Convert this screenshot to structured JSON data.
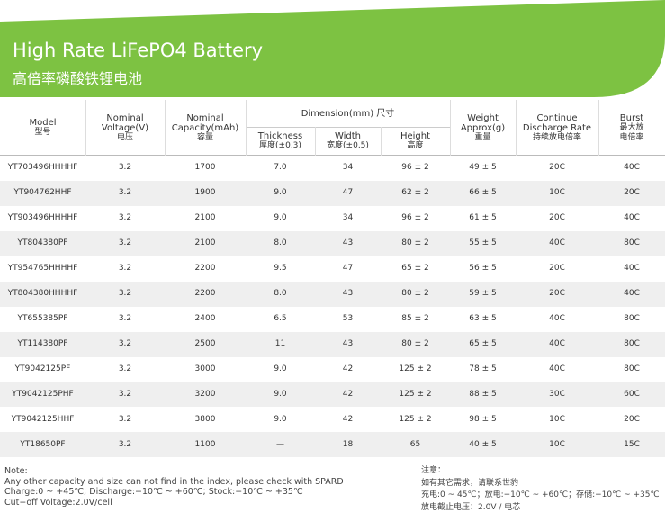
{
  "header": {
    "title": "High Rate LiFePO4 Battery",
    "subtitle": "高倍率磷酸铁锂电池"
  },
  "table": {
    "group": "Dimension(mm) 尺寸",
    "columns": [
      {
        "lines": [
          "Model",
          "型号"
        ]
      },
      {
        "lines": [
          "Nominal",
          "Voltage(V)",
          "电压"
        ]
      },
      {
        "lines": [
          "Nominal",
          "Capacity(mAh)",
          "容量"
        ]
      },
      {
        "lines": [
          "Thickness",
          "厚度(±0.3)"
        ]
      },
      {
        "lines": [
          "Width",
          "宽度(±0.5)"
        ]
      },
      {
        "lines": [
          "Height",
          "高度"
        ]
      },
      {
        "lines": [
          "Weight",
          "Approx(g)",
          "重量"
        ]
      },
      {
        "lines": [
          "Continue",
          "Discharge Rate",
          "持续放电倍率"
        ]
      },
      {
        "lines": [
          "Burst",
          "最大放",
          "电倍率"
        ]
      }
    ],
    "rows": [
      [
        "YT703496HHHHF",
        "3.2",
        "1700",
        "7.0",
        "34",
        "96 ± 2",
        "49 ± 5",
        "20C",
        "40C"
      ],
      [
        "YT904762HHF",
        "3.2",
        "1900",
        "9.0",
        "47",
        "62 ± 2",
        "66 ± 5",
        "10C",
        "20C"
      ],
      [
        "YT903496HHHHF",
        "3.2",
        "2100",
        "9.0",
        "34",
        "96 ± 2",
        "61 ± 5",
        "20C",
        "40C"
      ],
      [
        "YT804380PF",
        "3.2",
        "2100",
        "8.0",
        "43",
        "80 ± 2",
        "55 ± 5",
        "40C",
        "80C"
      ],
      [
        "YT954765HHHHF",
        "3.2",
        "2200",
        "9.5",
        "47",
        "65 ± 2",
        "56 ± 5",
        "20C",
        "40C"
      ],
      [
        "YT804380HHHHF",
        "3.2",
        "2200",
        "8.0",
        "43",
        "80 ± 2",
        "59 ± 5",
        "20C",
        "40C"
      ],
      [
        "YT655385PF",
        "3.2",
        "2400",
        "6.5",
        "53",
        "85 ± 2",
        "63 ± 5",
        "40C",
        "80C"
      ],
      [
        "YT114380PF",
        "3.2",
        "2500",
        "11",
        "43",
        "80 ± 2",
        "65 ± 5",
        "40C",
        "80C"
      ],
      [
        "YT9042125PF",
        "3.2",
        "3000",
        "9.0",
        "42",
        "125 ± 2",
        "78 ± 5",
        "40C",
        "80C"
      ],
      [
        "YT9042125PHF",
        "3.2",
        "3200",
        "9.0",
        "42",
        "125 ± 2",
        "88 ± 5",
        "30C",
        "60C"
      ],
      [
        "YT9042125HHF",
        "3.2",
        "3800",
        "9.0",
        "42",
        "125 ± 2",
        "98 ± 5",
        "10C",
        "20C"
      ],
      [
        "YT18650PF",
        "3.2",
        "1100",
        "—",
        "18",
        "65",
        "40 ± 5",
        "10C",
        "15C"
      ]
    ]
  },
  "notes": {
    "en": [
      "Note:",
      "Any other capacity and size can not find in the index, please check with SPARD",
      "Charge:0 ~ +45℃; Discharge:−10℃ ~ +60℃; Stock:−10℃ ~ +35℃",
      "Cut−off Voltage:2.0V/cell"
    ],
    "cn": [
      "注意：",
      "如有其它需求，请联系世豹",
      "充电:0 ~ 45℃；放电:−10℃ ~ +60℃；存储:−10℃ ~ +35℃",
      "放电截止电压：2.0V / 电芯"
    ]
  }
}
